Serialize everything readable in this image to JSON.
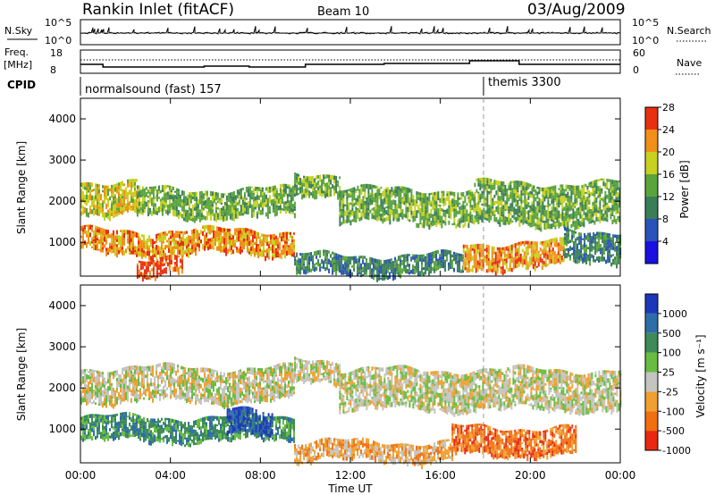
{
  "header": {
    "title": "Rankin Inlet (fitACF)",
    "beam": "Beam 10",
    "date": "03/Aug/2009"
  },
  "nsky_panel": {
    "left_label": "N.Sky",
    "left_ticks": [
      "10^5",
      "10^0"
    ],
    "right_label": "N.Search",
    "right_ticks": [
      "10^5",
      "10^0"
    ]
  },
  "freq_panel": {
    "left_label_top": "Freq.",
    "left_label_unit": "[MHz]",
    "left_ticks": [
      "18",
      "8"
    ],
    "right_label": "Nave",
    "right_ticks": [
      "60",
      "0"
    ]
  },
  "cpid_panel": {
    "label": "CPID",
    "programs": [
      {
        "name": "normalsound (fast) 157",
        "start_hour": 0
      },
      {
        "name": "themis 3300",
        "start_hour": 18
      }
    ]
  },
  "chart_data": [
    {
      "type": "heatmap",
      "name": "power",
      "ylabel": "Slant Range [km]",
      "ylim": [
        180,
        4500
      ],
      "yticks": [
        1000,
        2000,
        3000,
        4000
      ],
      "xlim": [
        0,
        24
      ],
      "colorbar": {
        "label": "Power [dB]",
        "ticks": [
          "4",
          "8",
          "12",
          "16",
          "20",
          "24",
          "28"
        ],
        "colors": [
          "#1a10e0",
          "#2a52b8",
          "#3a7e58",
          "#5aa43c",
          "#c8d020",
          "#f09018",
          "#e83010"
        ]
      },
      "bands": [
        {
          "t": [
            0,
            2.5
          ],
          "r": [
            1750,
            2500
          ],
          "level": 4
        },
        {
          "t": [
            2.5,
            9.5
          ],
          "r": [
            1650,
            2300
          ],
          "level": 3
        },
        {
          "t": [
            9.5,
            11.5
          ],
          "r": [
            2200,
            2700
          ],
          "level": 3
        },
        {
          "t": [
            11.5,
            17.5
          ],
          "r": [
            1500,
            2300
          ],
          "level": 3
        },
        {
          "t": [
            17.5,
            24
          ],
          "r": [
            1450,
            2450
          ],
          "level": 3
        },
        {
          "t": [
            0,
            9.5
          ],
          "r": [
            750,
            1300
          ],
          "level": 5
        },
        {
          "t": [
            2.5,
            4.5
          ],
          "r": [
            250,
            650
          ],
          "level": 6
        },
        {
          "t": [
            9.5,
            17
          ],
          "r": [
            250,
            700
          ],
          "level": 2
        },
        {
          "t": [
            17,
            21.5
          ],
          "r": [
            400,
            1000
          ],
          "level": 5
        },
        {
          "t": [
            21.5,
            24
          ],
          "r": [
            600,
            1300
          ],
          "level": 2
        }
      ]
    },
    {
      "type": "heatmap",
      "name": "velocity",
      "ylabel": "Slant Range [km]",
      "ylim": [
        180,
        4500
      ],
      "yticks": [
        1000,
        2000,
        3000,
        4000
      ],
      "xlim": [
        0,
        24
      ],
      "xlabel": "Time UT",
      "xticks": [
        "00:00",
        "04:00",
        "08:00",
        "12:00",
        "16:00",
        "20:00",
        "00:00"
      ],
      "colorbar": {
        "label": "Velocity [m s⁻¹]",
        "ticks": [
          "1000",
          "500",
          "100",
          "25",
          "-25",
          "-100",
          "-500",
          "-1000"
        ],
        "colors": [
          "#1c38b8",
          "#2e6ea8",
          "#3e8a58",
          "#68bc40",
          "#c4c4c0",
          "#f0a030",
          "#f07010",
          "#e82810"
        ]
      },
      "bands": [
        {
          "t": [
            0,
            9.5
          ],
          "r": [
            1700,
            2500
          ],
          "level": 4
        },
        {
          "t": [
            9.5,
            11.5
          ],
          "r": [
            2200,
            2700
          ],
          "level": 4
        },
        {
          "t": [
            11.5,
            24
          ],
          "r": [
            1500,
            2450
          ],
          "level": 4
        },
        {
          "t": [
            0,
            9.5
          ],
          "r": [
            750,
            1300
          ],
          "level": 2
        },
        {
          "t": [
            6.5,
            8.5
          ],
          "r": [
            900,
            1450
          ],
          "level": 0
        },
        {
          "t": [
            9.5,
            16.5
          ],
          "r": [
            250,
            700
          ],
          "level": 5
        },
        {
          "t": [
            16.5,
            22
          ],
          "r": [
            400,
            1050
          ],
          "level": 6
        }
      ]
    }
  ]
}
